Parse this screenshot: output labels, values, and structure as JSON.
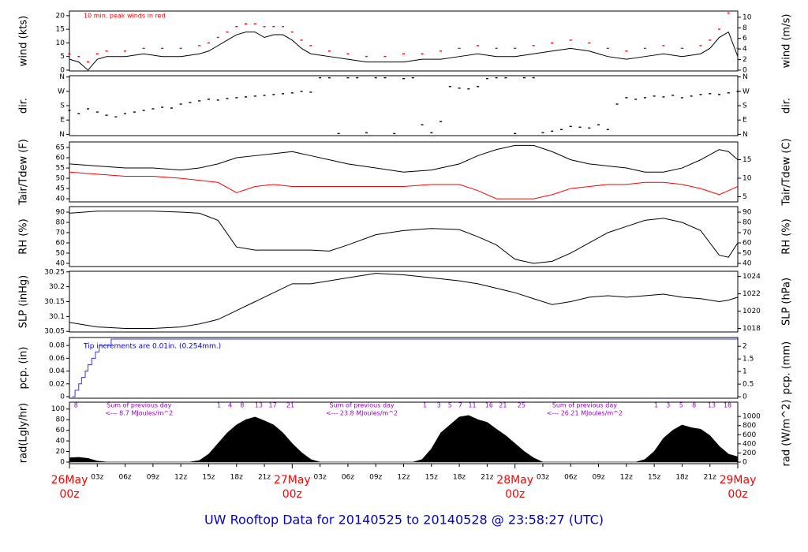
{
  "caption": "UW Rooftop Data for 20140525  to  20140528 @ 23:58:27  (UTC)",
  "chart_data": [
    {
      "type": "line",
      "ylabel": "wind (kts)",
      "y2label": "wind (m/s)",
      "annotation": "10 min. peak winds in red",
      "xlim": [
        0,
        72
      ],
      "ylim": [
        -0.3,
        21.7
      ],
      "yticks": [
        0,
        5,
        10,
        15,
        20
      ],
      "y2lim": [
        -0.15,
        11.17
      ],
      "y2ticks": [
        0,
        2,
        4,
        6,
        8,
        10
      ],
      "x": [
        0,
        1,
        2,
        3,
        4,
        6,
        8,
        10,
        12,
        14,
        15,
        16,
        17,
        18,
        19,
        20,
        21,
        22,
        23,
        24,
        25,
        26,
        28,
        30,
        32,
        34,
        36,
        38,
        40,
        42,
        44,
        46,
        48,
        50,
        52,
        54,
        56,
        58,
        60,
        62,
        64,
        66,
        68,
        69,
        70,
        71,
        72
      ],
      "series": [
        {
          "color": "#000000",
          "values": [
            4,
            3,
            0,
            4,
            5,
            5,
            6,
            5,
            5,
            6,
            7,
            9,
            11,
            13,
            14,
            14,
            12,
            13,
            13,
            11,
            8,
            6,
            5,
            4,
            3,
            3,
            3,
            4,
            4,
            5,
            6,
            5,
            5,
            6,
            7,
            8,
            7,
            5,
            4,
            5,
            6,
            5,
            6,
            8,
            12,
            14,
            5
          ]
        },
        {
          "color": "#ff0000",
          "marker": "dash",
          "values": [
            6,
            5,
            3,
            6,
            7,
            7,
            8,
            8,
            8,
            9,
            10,
            12,
            14,
            16,
            17,
            17,
            16,
            16,
            16,
            14,
            11,
            9,
            7,
            6,
            5,
            5,
            6,
            6,
            7,
            8,
            9,
            8,
            8,
            9,
            10,
            11,
            10,
            8,
            7,
            8,
            9,
            8,
            9,
            11,
            15,
            21,
            8
          ]
        }
      ]
    },
    {
      "type": "scatter",
      "ylabel": "dir.",
      "y2label": "dir.",
      "xlim": [
        0,
        72
      ],
      "ylim": [
        -8,
        368
      ],
      "yticks": [
        {
          "value": 0,
          "label": "N"
        },
        {
          "value": 90,
          "label": "E"
        },
        {
          "value": 180,
          "label": "S"
        },
        {
          "value": 270,
          "label": "W"
        },
        {
          "value": 360,
          "label": "N"
        }
      ],
      "y2ticks": [
        {
          "value": 0,
          "label": "N"
        },
        {
          "value": 90,
          "label": "E"
        },
        {
          "value": 180,
          "label": "S"
        },
        {
          "value": 270,
          "label": "W"
        },
        {
          "value": 360,
          "label": "N"
        }
      ],
      "x": [
        0,
        1,
        2,
        3,
        4,
        5,
        6,
        7,
        8,
        9,
        10,
        11,
        12,
        13,
        14,
        15,
        16,
        17,
        18,
        19,
        20,
        21,
        22,
        23,
        24,
        25,
        26,
        27,
        28,
        29,
        30,
        31,
        32,
        33,
        34,
        35,
        36,
        37,
        38,
        39,
        40,
        41,
        42,
        43,
        44,
        45,
        46,
        47,
        48,
        49,
        50,
        51,
        52,
        53,
        54,
        55,
        56,
        57,
        58,
        59,
        60,
        61,
        62,
        63,
        64,
        65,
        66,
        67,
        68,
        69,
        70,
        71,
        72
      ],
      "series": [
        {
          "color": "#000000",
          "values": [
            150,
            130,
            160,
            140,
            120,
            110,
            130,
            140,
            150,
            160,
            170,
            165,
            190,
            200,
            210,
            220,
            215,
            225,
            230,
            235,
            240,
            245,
            250,
            255,
            260,
            270,
            265,
            355,
            355,
            5,
            355,
            355,
            10,
            355,
            355,
            5,
            350,
            355,
            60,
            10,
            80,
            300,
            290,
            285,
            300,
            350,
            355,
            355,
            5,
            355,
            355,
            10,
            20,
            30,
            50,
            45,
            40,
            60,
            30,
            190,
            230,
            220,
            230,
            240,
            235,
            245,
            230,
            240,
            250,
            255,
            250,
            260,
            270
          ]
        }
      ]
    },
    {
      "type": "line",
      "ylabel": "Tair/Tdew (F)",
      "y2label": "Tair/Tdew (C)",
      "xlim": [
        0,
        72
      ],
      "ylim": [
        38.5,
        67.7
      ],
      "yticks": [
        40,
        45,
        50,
        55,
        60,
        65
      ],
      "y2lim": [
        3.6,
        19.8
      ],
      "y2ticks": [
        5,
        10,
        15
      ],
      "x": [
        0,
        3,
        6,
        9,
        12,
        14,
        16,
        18,
        20,
        22,
        24,
        26,
        28,
        30,
        33,
        36,
        39,
        42,
        44,
        46,
        48,
        50,
        52,
        54,
        56,
        58,
        60,
        62,
        64,
        66,
        68,
        70,
        71,
        72
      ],
      "series": [
        {
          "color": "#000000",
          "values": [
            57,
            56,
            55,
            55,
            54,
            55,
            57,
            60,
            61,
            62,
            63,
            61,
            59,
            57,
            55,
            53,
            54,
            57,
            61,
            64,
            66,
            66,
            63,
            59,
            57,
            56,
            55,
            53,
            53,
            55,
            59,
            64,
            63,
            59
          ]
        },
        {
          "color": "#ff0000",
          "values": [
            53,
            52,
            51,
            51,
            50,
            49,
            48,
            43,
            46,
            47,
            46,
            46,
            46,
            46,
            46,
            46,
            47,
            47,
            44,
            40,
            40,
            40,
            42,
            45,
            46,
            47,
            47,
            48,
            48,
            47,
            45,
            42,
            44,
            46
          ]
        }
      ]
    },
    {
      "type": "line",
      "ylabel": "RH (%)",
      "y2label": "RH (%)",
      "xlim": [
        0,
        72
      ],
      "ylim": [
        36.9,
        95.4
      ],
      "yticks": [
        40,
        50,
        60,
        70,
        80,
        90
      ],
      "y2lim": [
        36.9,
        95.4
      ],
      "y2ticks": [
        40,
        50,
        60,
        70,
        80,
        90
      ],
      "x": [
        0,
        3,
        6,
        9,
        12,
        14,
        16,
        18,
        20,
        22,
        24,
        26,
        28,
        30,
        33,
        36,
        39,
        42,
        44,
        46,
        48,
        50,
        52,
        54,
        56,
        58,
        60,
        62,
        64,
        66,
        68,
        70,
        71,
        72
      ],
      "series": [
        {
          "color": "#000000",
          "values": [
            89,
            91,
            91,
            91,
            90,
            89,
            82,
            56,
            53,
            53,
            53,
            53,
            52,
            58,
            68,
            72,
            74,
            73,
            66,
            58,
            44,
            40,
            42,
            50,
            60,
            70,
            76,
            82,
            84,
            80,
            72,
            48,
            46,
            60
          ]
        }
      ]
    },
    {
      "type": "line",
      "ylabel": "SLP (inHg)",
      "y2label": "SLP (hPa)",
      "xlim": [
        0,
        72
      ],
      "ylim": [
        30.048,
        30.252
      ],
      "yticks": [
        30.05,
        30.1,
        30.15,
        30.2,
        30.25
      ],
      "y2lim": [
        1017.6,
        1024.6
      ],
      "y2ticks": [
        1018,
        1020,
        1022,
        1024
      ],
      "x": [
        0,
        3,
        6,
        9,
        12,
        14,
        16,
        18,
        20,
        22,
        24,
        26,
        28,
        30,
        33,
        36,
        39,
        42,
        44,
        46,
        48,
        50,
        52,
        54,
        56,
        58,
        60,
        62,
        64,
        66,
        68,
        70,
        71,
        72
      ],
      "series": [
        {
          "color": "#000000",
          "values": [
            30.08,
            30.065,
            30.06,
            30.06,
            30.065,
            30.075,
            30.09,
            30.12,
            30.15,
            30.18,
            30.21,
            30.21,
            30.22,
            30.23,
            30.245,
            30.24,
            30.23,
            30.22,
            30.21,
            30.195,
            30.18,
            30.16,
            30.14,
            30.15,
            30.165,
            30.17,
            30.165,
            30.17,
            30.175,
            30.165,
            30.16,
            30.15,
            30.155,
            30.165
          ]
        }
      ]
    },
    {
      "type": "step",
      "ylabel": "pcp. (in)",
      "y2label": "pcp. (mm)",
      "annotation": "Tip increments are 0.01in. (0.254mm.)",
      "xlim": [
        0,
        72
      ],
      "ylim": [
        -0.0025,
        0.0925
      ],
      "yticks": [
        0,
        0.02,
        0.04,
        0.06,
        0.08
      ],
      "y2lim": [
        -0.06,
        2.35
      ],
      "y2ticks": [
        0,
        0.5,
        1,
        1.5,
        2
      ],
      "x": [
        0.3,
        0.6,
        1,
        1.3,
        1.7,
        2,
        2.4,
        2.8,
        3.2,
        4.5,
        72
      ],
      "series": [
        {
          "color": "#3333ff",
          "values": [
            0,
            0.01,
            0.02,
            0.03,
            0.04,
            0.05,
            0.06,
            0.07,
            0.08,
            0.09,
            0.09
          ]
        }
      ]
    },
    {
      "type": "area",
      "ylabel": "rad(Lgly/hr)",
      "y2label": "rad (W/m^2)",
      "xlim": [
        0,
        72
      ],
      "ylim": [
        -3,
        113
      ],
      "yticks": [
        0,
        20,
        40,
        60,
        80,
        100
      ],
      "y2lim": [
        -35,
        1314
      ],
      "y2ticks": [
        0,
        200,
        400,
        600,
        800,
        1000
      ],
      "notes": [
        {
          "text": "Sum of previous day",
          "sub": "<--- 8.7 MJoules/m^2"
        },
        {
          "text": "Sum of previous day",
          "sub": "<--- 23.8 MJoules/m^2"
        },
        {
          "text": "Sum of previous day",
          "sub": "<--- 26.21 MJoules/m^2"
        }
      ],
      "hour_marks": [
        {
          "x": 0.7,
          "n": 8
        },
        {
          "x": 16.1,
          "n": 1
        },
        {
          "x": 17.3,
          "n": 4
        },
        {
          "x": 18.6,
          "n": 8
        },
        {
          "x": 20.4,
          "n": 13
        },
        {
          "x": 21.9,
          "n": 17
        },
        {
          "x": 23.8,
          "n": 21
        },
        {
          "x": 38.3,
          "n": 1
        },
        {
          "x": 39.8,
          "n": 3
        },
        {
          "x": 41.0,
          "n": 5
        },
        {
          "x": 42.1,
          "n": 7
        },
        {
          "x": 43.4,
          "n": 11
        },
        {
          "x": 45.2,
          "n": 16
        },
        {
          "x": 46.7,
          "n": 21
        },
        {
          "x": 48.7,
          "n": 25
        },
        {
          "x": 63.2,
          "n": 1
        },
        {
          "x": 64.5,
          "n": 3
        },
        {
          "x": 65.9,
          "n": 5
        },
        {
          "x": 67.3,
          "n": 8
        },
        {
          "x": 69.2,
          "n": 13
        },
        {
          "x": 70.9,
          "n": 18
        }
      ],
      "xticks": [
        {
          "value": 3,
          "label": "03z"
        },
        {
          "value": 6,
          "label": "06z"
        },
        {
          "value": 9,
          "label": "09z"
        },
        {
          "value": 12,
          "label": "12z"
        },
        {
          "value": 15,
          "label": "15z"
        },
        {
          "value": 18,
          "label": "18z"
        },
        {
          "value": 21,
          "label": "21z"
        },
        {
          "value": 27,
          "label": "03z"
        },
        {
          "value": 30,
          "label": "06z"
        },
        {
          "value": 33,
          "label": "09z"
        },
        {
          "value": 36,
          "label": "12z"
        },
        {
          "value": 39,
          "label": "15z"
        },
        {
          "value": 42,
          "label": "18z"
        },
        {
          "value": 45,
          "label": "21z"
        },
        {
          "value": 51,
          "label": "03z"
        },
        {
          "value": 54,
          "label": "06z"
        },
        {
          "value": 57,
          "label": "09z"
        },
        {
          "value": 60,
          "label": "12z"
        },
        {
          "value": 63,
          "label": "15z"
        },
        {
          "value": 66,
          "label": "18z"
        },
        {
          "value": 69,
          "label": "21z"
        }
      ],
      "date_ticks": [
        {
          "value": 0,
          "date": "26May",
          "time": "00z"
        },
        {
          "value": 24,
          "date": "27May",
          "time": "00z"
        },
        {
          "value": 48,
          "date": "28May",
          "time": "00z"
        },
        {
          "value": 72,
          "date": "29May",
          "time": "00z"
        }
      ],
      "x": [
        0,
        1,
        2,
        3,
        4,
        5,
        6,
        7,
        8,
        9,
        10,
        11,
        12,
        13,
        14,
        15,
        16,
        17,
        18,
        19,
        20,
        21,
        22,
        23,
        24,
        25,
        26,
        27,
        28,
        29,
        30,
        31,
        32,
        33,
        34,
        35,
        36,
        37,
        38,
        39,
        40,
        41,
        42,
        43,
        44,
        45,
        46,
        47,
        48,
        49,
        50,
        51,
        52,
        53,
        54,
        55,
        56,
        57,
        58,
        59,
        60,
        61,
        62,
        63,
        64,
        65,
        66,
        67,
        68,
        69,
        70,
        71,
        72
      ],
      "series": [
        {
          "color": "#000000",
          "values": [
            8,
            9,
            7,
            2,
            0,
            0,
            0,
            0,
            0,
            0,
            0,
            0,
            0,
            0,
            3,
            15,
            35,
            55,
            70,
            80,
            85,
            78,
            70,
            55,
            35,
            18,
            5,
            0,
            0,
            0,
            0,
            0,
            0,
            0,
            0,
            0,
            0,
            0,
            5,
            25,
            55,
            70,
            85,
            88,
            80,
            75,
            62,
            50,
            35,
            20,
            8,
            0,
            0,
            0,
            0,
            0,
            0,
            0,
            0,
            0,
            0,
            0,
            5,
            20,
            45,
            60,
            70,
            65,
            62,
            50,
            30,
            15,
            10
          ]
        }
      ]
    }
  ]
}
